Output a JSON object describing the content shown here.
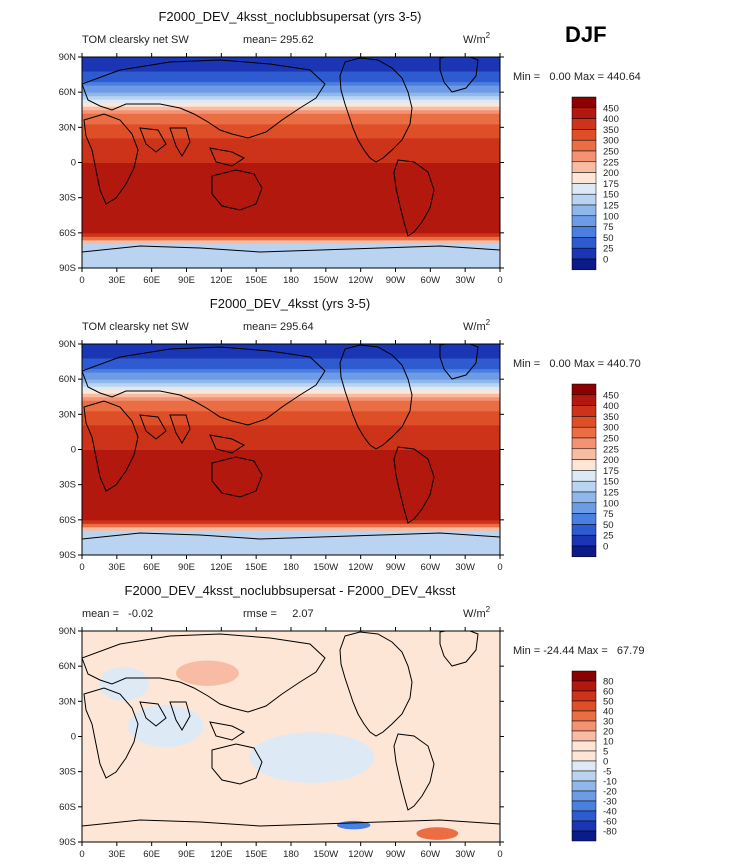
{
  "season": "DJF",
  "chart_data": [
    {
      "type": "heatmap",
      "title": "F2000_DEV_4ksst_noclubbsupersat (yrs 3-5)",
      "variable_label": "TOM clearsky net SW",
      "stat_text": "mean= 295.62",
      "units_text": "W/m",
      "units_exp": "2",
      "minmax_text": "Min =   0.00 Max = 440.64",
      "colorbar_levels": [
        "450",
        "400",
        "350",
        "300",
        "250",
        "225",
        "200",
        "175",
        "150",
        "125",
        "100",
        "75",
        "50",
        "25",
        "0"
      ],
      "colorbar_colors": [
        "#8b0000",
        "#b2180d",
        "#cc3318",
        "#de4f28",
        "#ea6d43",
        "#f39373",
        "#f8bba4",
        "#fde6d6",
        "#ddeaf6",
        "#b9d3f0",
        "#8fb7ea",
        "#6d9be6",
        "#4a7fe2",
        "#2f5bd1",
        "#1b36b5",
        "#0c1a8a"
      ],
      "xticks": [
        "0",
        "30E",
        "60E",
        "90E",
        "120E",
        "150E",
        "180",
        "150W",
        "120W",
        "90W",
        "60W",
        "30W",
        "0"
      ],
      "yticks": [
        "90N",
        "60N",
        "30N",
        "0",
        "30S",
        "60S",
        "90S"
      ],
      "zonal_profile": {
        "lat": [
          -90,
          -70,
          -60,
          -50,
          -30,
          -10,
          0,
          10,
          30,
          45,
          60,
          70,
          90
        ],
        "value": [
          130,
          140,
          420,
          410,
          420,
          425,
          400,
          385,
          320,
          230,
          110,
          40,
          0
        ]
      }
    },
    {
      "type": "heatmap",
      "title": "F2000_DEV_4ksst (yrs 3-5)",
      "variable_label": "TOM clearsky net SW",
      "stat_text": "mean= 295.64",
      "units_text": "W/m",
      "units_exp": "2",
      "minmax_text": "Min =   0.00 Max = 440.70",
      "colorbar_levels": [
        "450",
        "400",
        "350",
        "300",
        "250",
        "225",
        "200",
        "175",
        "150",
        "125",
        "100",
        "75",
        "50",
        "25",
        "0"
      ],
      "colorbar_colors": [
        "#8b0000",
        "#b2180d",
        "#cc3318",
        "#de4f28",
        "#ea6d43",
        "#f39373",
        "#f8bba4",
        "#fde6d6",
        "#ddeaf6",
        "#b9d3f0",
        "#8fb7ea",
        "#6d9be6",
        "#4a7fe2",
        "#2f5bd1",
        "#1b36b5",
        "#0c1a8a"
      ],
      "xticks": [
        "0",
        "30E",
        "60E",
        "90E",
        "120E",
        "150E",
        "180",
        "150W",
        "120W",
        "90W",
        "60W",
        "30W",
        "0"
      ],
      "yticks": [
        "90N",
        "60N",
        "30N",
        "0",
        "30S",
        "60S",
        "90S"
      ],
      "zonal_profile": {
        "lat": [
          -90,
          -70,
          -60,
          -50,
          -30,
          -10,
          0,
          10,
          30,
          45,
          60,
          70,
          90
        ],
        "value": [
          130,
          140,
          420,
          410,
          420,
          425,
          400,
          385,
          320,
          230,
          110,
          40,
          0
        ]
      }
    },
    {
      "type": "heatmap",
      "title": "F2000_DEV_4ksst_noclubbsupersat - F2000_DEV_4ksst",
      "stat_text": "mean =   -0.02",
      "rmse_text": "rmse =     2.07",
      "units_text": "W/m",
      "units_exp": "2",
      "minmax_text": "Min = -24.44 Max =   67.79",
      "colorbar_levels": [
        "80",
        "60",
        "50",
        "40",
        "30",
        "20",
        "10",
        "5",
        "0",
        "-5",
        "-10",
        "-20",
        "-30",
        "-40",
        "-60",
        "-80"
      ],
      "colorbar_colors": [
        "#8b0000",
        "#b2180d",
        "#cc3318",
        "#de4f28",
        "#ea6d43",
        "#f39373",
        "#f8bba4",
        "#fde6d6",
        "#fde6d6",
        "#ddeaf6",
        "#b9d3f0",
        "#8fb7ea",
        "#6d9be6",
        "#4a7fe2",
        "#2f5bd1",
        "#1b36b5",
        "#0c1a8a"
      ],
      "xticks": [
        "0",
        "30E",
        "60E",
        "90E",
        "120E",
        "150E",
        "180",
        "150W",
        "120W",
        "90W",
        "60W",
        "30W",
        "0"
      ],
      "yticks": [
        "90N",
        "60N",
        "30N",
        "0",
        "30S",
        "60S",
        "90S"
      ],
      "background_value": 0
    }
  ]
}
